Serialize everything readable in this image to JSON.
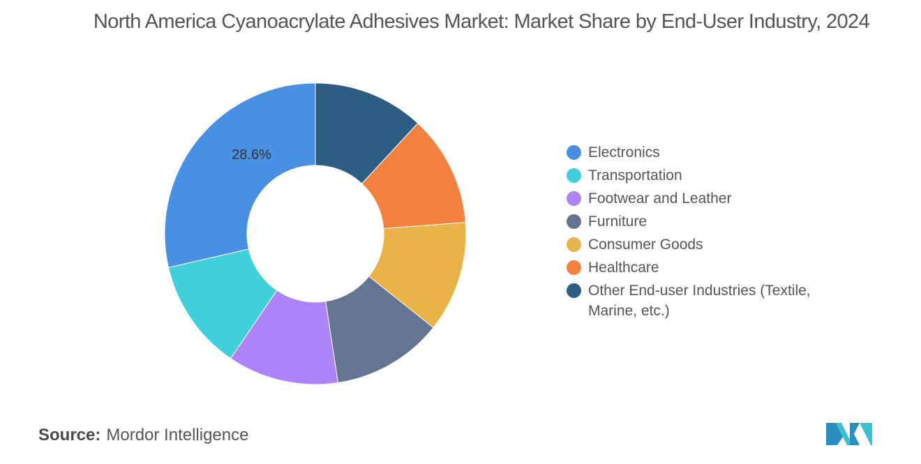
{
  "title": "North America Cyanoacrylate Adhesives Market: Market Share by End-User Industry, 2024",
  "source": {
    "label": "Source:",
    "value": "Mordor Intelligence"
  },
  "chart_data": {
    "type": "pie",
    "variant": "donut",
    "title": "North America Cyanoacrylate Adhesives Market: Market Share by End-User Industry, 2024",
    "unit": "%",
    "legend_position": "right",
    "slices": [
      {
        "name": "Other End-user Industries (Textile, Marine, etc.)",
        "value": 11.9,
        "color": "#2e5c82"
      },
      {
        "name": "Healthcare",
        "value": 11.9,
        "color": "#f2813f"
      },
      {
        "name": "Consumer Goods",
        "value": 11.9,
        "color": "#e8b44a"
      },
      {
        "name": "Furniture",
        "value": 11.9,
        "color": "#647594"
      },
      {
        "name": "Footwear and Leather",
        "value": 11.9,
        "color": "#ad83f7"
      },
      {
        "name": "Transportation",
        "value": 11.9,
        "color": "#40cfdb"
      },
      {
        "name": "Electronics",
        "value": 28.6,
        "color": "#4a90e2",
        "label": "28.6%"
      }
    ],
    "legend_order": [
      "Electronics",
      "Transportation",
      "Footwear and Leather",
      "Furniture",
      "Consumer Goods",
      "Healthcare",
      "Other End-user Industries (Textile, Marine, etc.)"
    ]
  }
}
